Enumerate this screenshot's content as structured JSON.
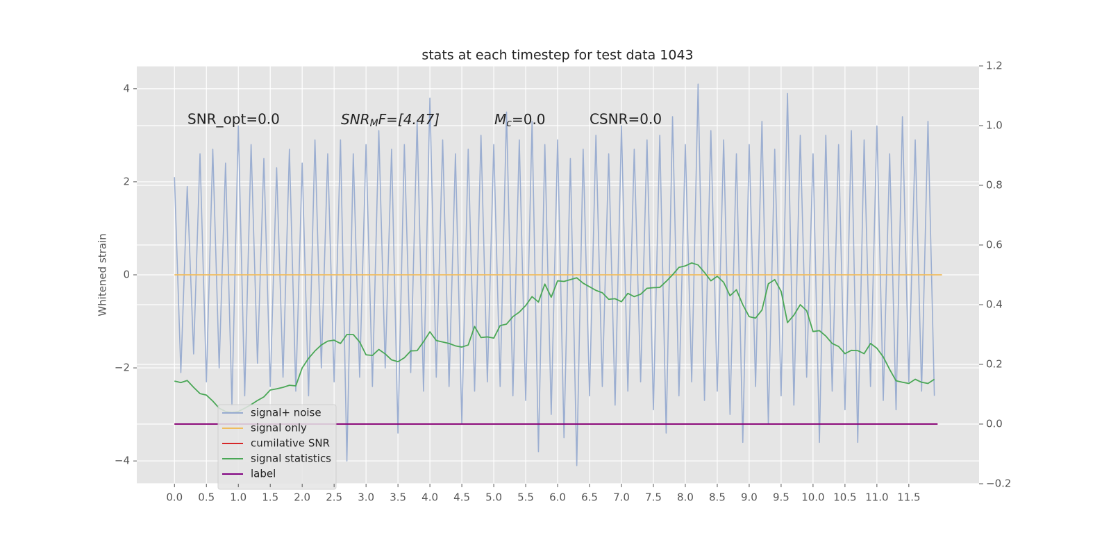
{
  "chart_data": {
    "type": "line",
    "title": "stats at each timestep for test data 1043",
    "ylabel": "Whitened strain",
    "annotations": [
      {
        "text": "SNR_opt=0.0"
      },
      {
        "base": "SNR",
        "sub": "M",
        "tail": "F=[4.47]"
      },
      {
        "base": "M",
        "sub": "c",
        "tail": "=0.0"
      },
      {
        "text": "CSNR=0.0"
      }
    ],
    "xlim": [
      -0.59,
      12.6
    ],
    "xticks": [
      {
        "value": 0,
        "label": "0.0"
      },
      {
        "value": 0.5,
        "label": "0.5"
      },
      {
        "value": 1,
        "label": "1.0"
      },
      {
        "value": 1.5,
        "label": "1.5"
      },
      {
        "value": 2,
        "label": "2.0"
      },
      {
        "value": 2.5,
        "label": "2.5"
      },
      {
        "value": 3,
        "label": "3.0"
      },
      {
        "value": 3.5,
        "label": "3.5"
      },
      {
        "value": 4,
        "label": "4.0"
      },
      {
        "value": 4.5,
        "label": "4.5"
      },
      {
        "value": 5,
        "label": "5.0"
      },
      {
        "value": 5.5,
        "label": "5.5"
      },
      {
        "value": 6,
        "label": "6.0"
      },
      {
        "value": 6.5,
        "label": "6.5"
      },
      {
        "value": 7,
        "label": "7.0"
      },
      {
        "value": 7.5,
        "label": "7.5"
      },
      {
        "value": 8,
        "label": "8.0"
      },
      {
        "value": 8.5,
        "label": "8.5"
      },
      {
        "value": 9,
        "label": "9.0"
      },
      {
        "value": 9.5,
        "label": "9.5"
      },
      {
        "value": 10,
        "label": "10.0"
      },
      {
        "value": 10.5,
        "label": "10.5"
      },
      {
        "value": 11,
        "label": "11.0"
      },
      {
        "value": 11.5,
        "label": "11.5"
      }
    ],
    "ylim": [
      -4.49,
      4.49
    ],
    "yticks": [
      {
        "value": -4,
        "label": "−4"
      },
      {
        "value": -2,
        "label": "−2"
      },
      0,
      2,
      4
    ],
    "y2lim": [
      -0.2,
      1.2
    ],
    "y2ticks": [
      {
        "value": -0.2,
        "label": "−0.2"
      },
      {
        "value": 0,
        "label": "0.0"
      },
      {
        "value": 0.2,
        "label": "0.2"
      },
      {
        "value": 0.4,
        "label": "0.4"
      },
      {
        "value": 0.6,
        "label": "0.6"
      },
      {
        "value": 0.8,
        "label": "0.8"
      },
      {
        "value": 1.0,
        "label": "1.0"
      },
      {
        "value": 1.2,
        "label": "1.2"
      }
    ],
    "grid": true,
    "legend": "lower left",
    "x": [
      0,
      0.1,
      0.2,
      0.3,
      0.4,
      0.5,
      0.6,
      0.7,
      0.8,
      0.9,
      1,
      1.1,
      1.2,
      1.3,
      1.4,
      1.5,
      1.6,
      1.7,
      1.8,
      1.9,
      2,
      2.1,
      2.2,
      2.3,
      2.4,
      2.5,
      2.6,
      2.7,
      2.8,
      2.9,
      3,
      3.1,
      3.2,
      3.3,
      3.4,
      3.5,
      3.6,
      3.7,
      3.8,
      3.9,
      4,
      4.1,
      4.2,
      4.3,
      4.4,
      4.5,
      4.6,
      4.7,
      4.8,
      4.9,
      5,
      5.1,
      5.2,
      5.3,
      5.4,
      5.5,
      5.6,
      5.7,
      5.8,
      5.9,
      6,
      6.1,
      6.2,
      6.3,
      6.4,
      6.5,
      6.6,
      6.7,
      6.8,
      6.9,
      7,
      7.1,
      7.2,
      7.3,
      7.4,
      7.5,
      7.6,
      7.7,
      7.8,
      7.9,
      8,
      8.1,
      8.2,
      8.3,
      8.4,
      8.5,
      8.6,
      8.7,
      8.8,
      8.9,
      9,
      9.1,
      9.2,
      9.3,
      9.4,
      9.5,
      9.6,
      9.7,
      9.8,
      9.9,
      10,
      10.1,
      10.2,
      10.3,
      10.4,
      10.5,
      10.6,
      10.7,
      10.8,
      10.9,
      11,
      11.1,
      11.2,
      11.3,
      11.4,
      11.5,
      11.6,
      11.7,
      11.8,
      11.9
    ],
    "series": [
      {
        "name": "signal+ noise",
        "color": "#97abd0",
        "values": [
          2.1,
          -2.1,
          1.9,
          -1.7,
          2.6,
          -2.3,
          2.7,
          -2.0,
          2.4,
          -2.8,
          3.2,
          -2.6,
          2.8,
          -1.9,
          2.5,
          -2.4,
          2.3,
          -2.2,
          2.7,
          -2.5,
          2.4,
          -2.6,
          2.9,
          -2.0,
          2.6,
          -2.3,
          2.9,
          -4.0,
          2.6,
          -2.2,
          2.8,
          -2.4,
          3.1,
          -2.0,
          2.7,
          -3.4,
          2.8,
          -2.1,
          3.3,
          -2.5,
          3.8,
          -2.2,
          2.9,
          -2.4,
          2.6,
          -3.2,
          2.7,
          -2.5,
          3.0,
          -2.3,
          2.8,
          -2.4,
          3.5,
          -2.6,
          2.9,
          -2.7,
          3.3,
          -3.8,
          2.8,
          -3.0,
          2.9,
          -3.5,
          2.5,
          -4.1,
          2.7,
          -2.6,
          3.0,
          -2.4,
          2.6,
          -2.8,
          3.2,
          -2.5,
          2.7,
          -2.3,
          2.9,
          -2.9,
          3.0,
          -3.4,
          3.4,
          -2.6,
          2.8,
          -2.3,
          4.1,
          -2.7,
          3.1,
          -2.5,
          2.9,
          -3.0,
          2.6,
          -3.6,
          2.8,
          -2.4,
          3.3,
          -3.2,
          2.7,
          -2.6,
          3.9,
          -2.8,
          3.0,
          -2.2,
          2.6,
          -3.6,
          3.0,
          -2.5,
          2.8,
          -2.9,
          3.1,
          -3.6,
          2.9,
          -2.4,
          3.2,
          -2.7,
          2.6,
          -2.9,
          3.4,
          -2.3,
          2.9,
          -2.5,
          3.3,
          -2.6
        ]
      },
      {
        "name": "signal only",
        "color": "#f0bc5e",
        "x": [
          0,
          12.02
        ],
        "values": [
          0,
          0
        ]
      },
      {
        "name": "cumilative SNR",
        "color": "#d62728",
        "axis": "y2",
        "x": [
          0,
          11.95
        ],
        "values": [
          0,
          0
        ]
      },
      {
        "name": "signal statistics",
        "color": "#4aa756",
        "axis": "y2",
        "values": [
          0.144,
          0.139,
          0.146,
          0.123,
          0.102,
          0.097,
          0.077,
          0.053,
          0.042,
          0.039,
          0.042,
          0.053,
          0.065,
          0.079,
          0.091,
          0.114,
          0.118,
          0.123,
          0.13,
          0.128,
          0.188,
          0.22,
          0.245,
          0.265,
          0.278,
          0.281,
          0.27,
          0.3,
          0.3,
          0.275,
          0.232,
          0.23,
          0.25,
          0.235,
          0.215,
          0.209,
          0.222,
          0.245,
          0.246,
          0.276,
          0.309,
          0.28,
          0.275,
          0.27,
          0.262,
          0.258,
          0.265,
          0.327,
          0.29,
          0.292,
          0.288,
          0.33,
          0.335,
          0.36,
          0.375,
          0.397,
          0.427,
          0.409,
          0.469,
          0.425,
          0.48,
          0.478,
          0.484,
          0.49,
          0.472,
          0.46,
          0.448,
          0.44,
          0.418,
          0.42,
          0.41,
          0.438,
          0.427,
          0.435,
          0.455,
          0.457,
          0.458,
          0.478,
          0.5,
          0.525,
          0.53,
          0.54,
          0.533,
          0.508,
          0.48,
          0.495,
          0.475,
          0.43,
          0.45,
          0.4,
          0.36,
          0.355,
          0.382,
          0.47,
          0.484,
          0.445,
          0.34,
          0.365,
          0.4,
          0.38,
          0.31,
          0.313,
          0.295,
          0.27,
          0.26,
          0.236,
          0.247,
          0.246,
          0.236,
          0.27,
          0.254,
          0.225,
          0.183,
          0.145,
          0.14,
          0.136,
          0.15,
          0.14,
          0.136,
          0.15
        ]
      },
      {
        "name": "label",
        "color": "#800080",
        "axis": "y2",
        "x": [
          0,
          11.95
        ],
        "values": [
          0,
          0
        ]
      }
    ]
  }
}
